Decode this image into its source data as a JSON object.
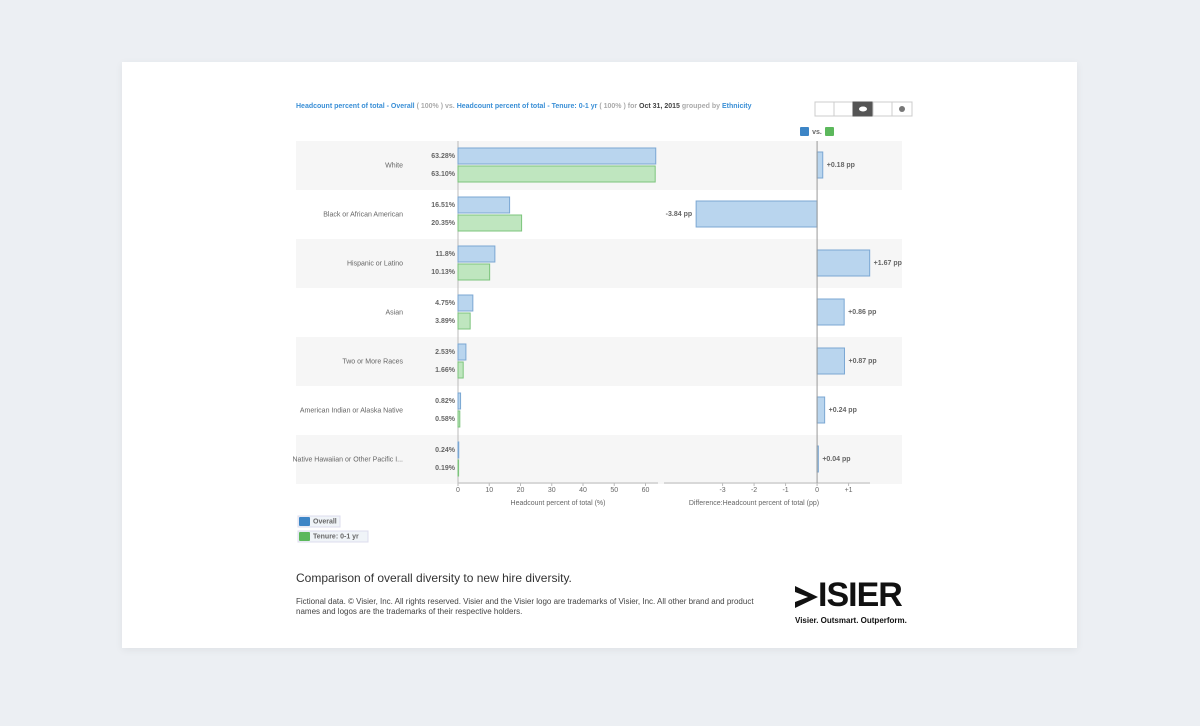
{
  "header": {
    "metric_a": "Headcount percent of total - Overall",
    "total_a": "( 100% )",
    "vs": "vs.",
    "metric_b": "Headcount percent of total - Tenure: 0-1 yr",
    "total_b": "( 100% )",
    "for": "for",
    "date": "Oct 31, 2015",
    "grouped_by": "grouped by",
    "group": "Ethnicity"
  },
  "compare_label": "vs.",
  "chart_data": [
    {
      "type": "bar",
      "orientation": "horizontal",
      "categories": [
        "White",
        "Black or African American",
        "Hispanic or Latino",
        "Asian",
        "Two or More Races",
        "American Indian or Alaska Native",
        "Native Hawaiian or Other Pacific I..."
      ],
      "series": [
        {
          "name": "Overall",
          "color": "#b9d5ee",
          "values": [
            63.28,
            16.51,
            11.8,
            4.75,
            2.53,
            0.82,
            0.24
          ],
          "value_labels": [
            "63.28%",
            "16.51%",
            "11.8%",
            "4.75%",
            "2.53%",
            "0.82%",
            "0.24%"
          ]
        },
        {
          "name": "Tenure: 0-1 yr",
          "color": "#bfe6bf",
          "values": [
            63.1,
            20.35,
            10.13,
            3.89,
            1.66,
            0.58,
            0.19
          ],
          "value_labels": [
            "63.10%",
            "20.35%",
            "10.13%",
            "3.89%",
            "1.66%",
            "0.58%",
            "0.19%"
          ]
        }
      ],
      "xlim": [
        0,
        64
      ],
      "xticks": [
        0,
        10,
        20,
        30,
        40,
        50,
        60
      ],
      "x_label": "Headcount percent of total (%)"
    },
    {
      "type": "diffbar",
      "orientation": "horizontal",
      "color": "#b9d5ee",
      "values": [
        0.18,
        -3.84,
        1.67,
        0.86,
        0.87,
        0.24,
        0.04
      ],
      "value_labels": [
        "+0.18 pp",
        "-3.84 pp",
        "+1.67 pp",
        "+0.86 pp",
        "+0.87 pp",
        "+0.24 pp",
        "+0.04 pp"
      ],
      "xlim": [
        -4.86,
        1.68
      ],
      "xticks": [
        -3,
        -2,
        -1,
        0,
        {
          "value": 1,
          "label": "+1"
        }
      ],
      "x_label": "Difference:Headcount percent of total (pp)"
    }
  ],
  "caption": "Comparison of overall diversity to new hire diversity.",
  "footnote": "Fictional data. © Visier, Inc. All rights reserved. Visier and the Visier logo are trademarks of Visier, Inc. All other brand and product names and logos are the trademarks of their respective holders.",
  "logo": {
    "wordmark": "ISIER",
    "tagline": "Visier. Outsmart. Outperform."
  }
}
